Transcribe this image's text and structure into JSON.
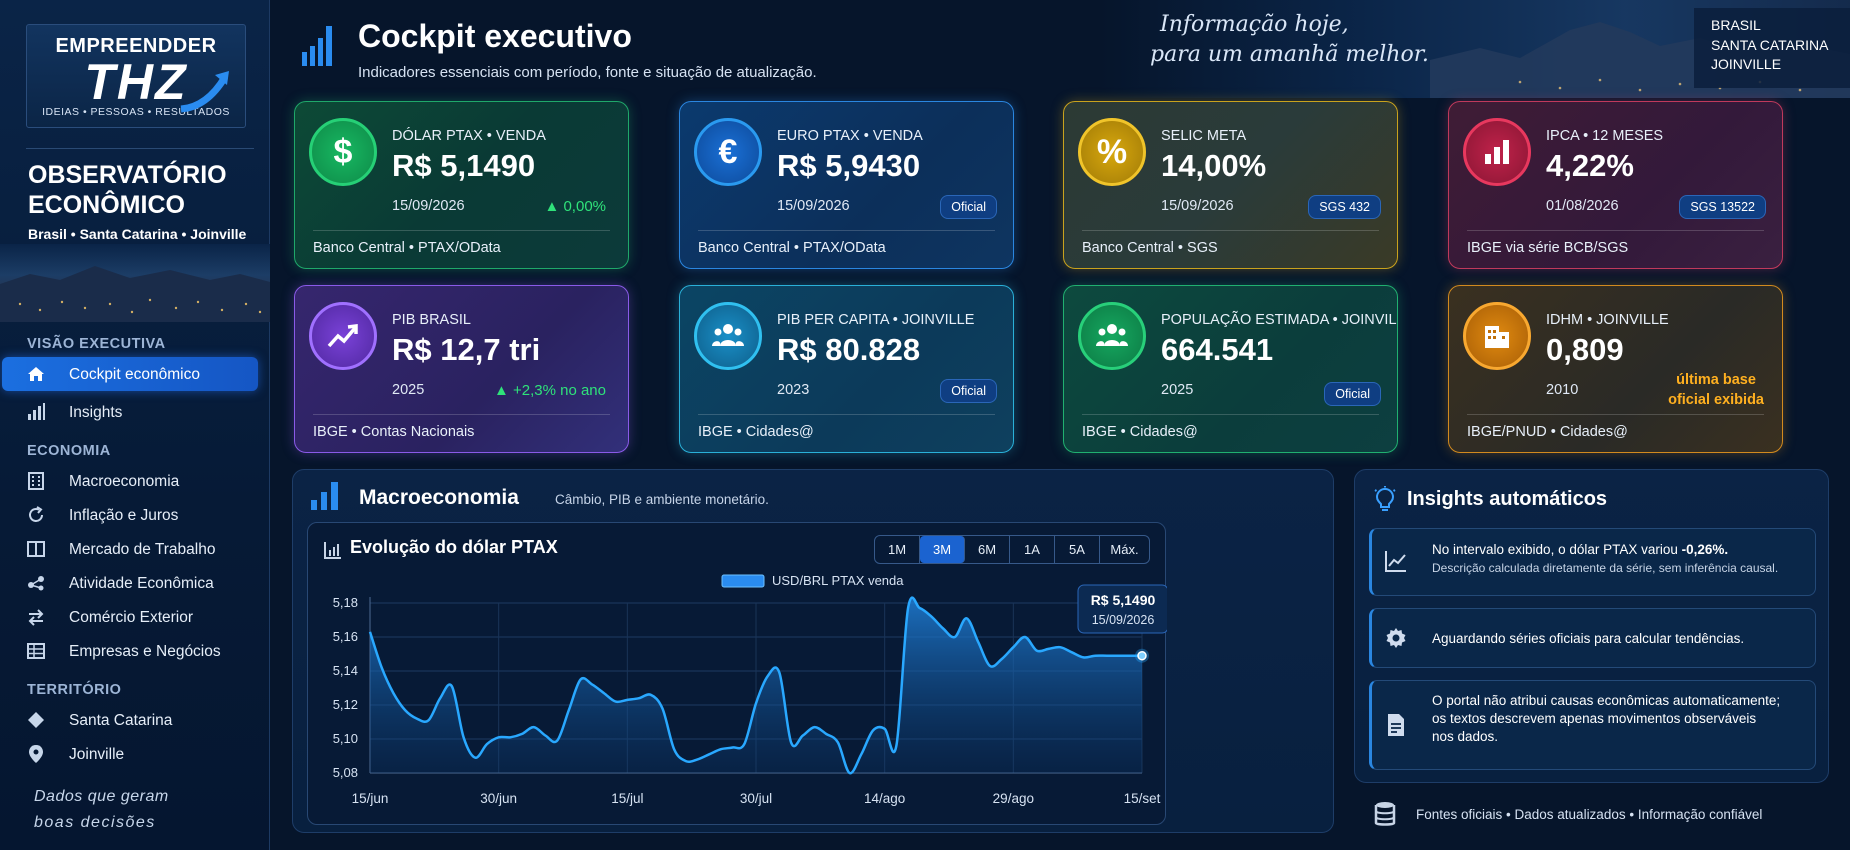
{
  "brand": {
    "top": "EMPREENDDER",
    "big": "THZ",
    "tagline": "IDEIAS • PESSOAS • RESULTADOS"
  },
  "observatory": {
    "title_line1": "OBSERVATÓRIO",
    "title_line2": "ECONÔMICO",
    "subtitle": "Brasil • Santa Catarina • Joinville"
  },
  "sidebar": {
    "sections": [
      "VISÃO EXECUTIVA",
      "ECONOMIA",
      "TERRITÓRIO"
    ],
    "items": [
      {
        "label": "Cockpit econômico",
        "icon": "home-icon",
        "active": true
      },
      {
        "label": "Insights",
        "icon": "bar-chart-icon"
      },
      {
        "label": "Macroeconomia",
        "icon": "building-icon"
      },
      {
        "label": "Inflação e Juros",
        "icon": "refresh-icon"
      },
      {
        "label": "Mercado de Trabalho",
        "icon": "book-icon"
      },
      {
        "label": "Atividade Econômica",
        "icon": "network-icon"
      },
      {
        "label": "Comércio Exterior",
        "icon": "exchange-icon"
      },
      {
        "label": "Empresas e Negócios",
        "icon": "table-icon"
      },
      {
        "label": "Santa Catarina",
        "icon": "diamond-icon"
      },
      {
        "label": "Joinville",
        "icon": "pin-icon"
      }
    ],
    "footer_line1": "Dados que geram",
    "footer_line2": "boas decisões"
  },
  "header": {
    "title": "Cockpit executivo",
    "subtitle": "Indicadores essenciais com período, fonte e situação de atualização.",
    "slogan_line1": "Informação hoje,",
    "slogan_line2": "para um amanhã melhor.",
    "location": [
      "BRASIL",
      "SANTA CATARINA",
      "JOINVILLE"
    ]
  },
  "cards": [
    {
      "label": "DÓLAR PTAX • VENDA",
      "value": "R$ 5,1490",
      "date": "15/09/2026",
      "source": "Banco Central • PTAX/OData",
      "change": "▲ 0,00%",
      "icon_text": "$",
      "color": "#1fc46f"
    },
    {
      "label": "EURO PTAX • VENDA",
      "value": "R$ 5,9430",
      "date": "15/09/2026",
      "source": "Banco Central • PTAX/OData",
      "badge": "Oficial",
      "icon_text": "€",
      "color": "#1f8ef0"
    },
    {
      "label": "SELIC META",
      "value": "14,00%",
      "date": "15/09/2026",
      "source": "Banco Central • SGS",
      "badge": "SGS 432",
      "icon_text": "%",
      "color": "#e0b21a"
    },
    {
      "label": "IPCA • 12 MESES",
      "value": "4,22%",
      "date": "01/08/2026",
      "source": "IBGE via série BCB/SGS",
      "badge": "SGS 13522",
      "icon": "bar-chart-icon",
      "color": "#d8325a"
    },
    {
      "label": "PIB BRASIL",
      "value": "R$ 12,7 tri",
      "date": "2025",
      "source": "IBGE • Contas Nacionais",
      "change": "▲ +2,3% no ano",
      "icon": "trend-up-icon",
      "color": "#8c52f0"
    },
    {
      "label": "PIB PER CAPITA • JOINVILLE",
      "value": "R$ 80.828",
      "date": "2023",
      "source": "IBGE • Cidades@",
      "badge": "Oficial",
      "icon": "people-icon",
      "color": "#1ea6d8"
    },
    {
      "label": "POPULAÇÃO ESTIMADA • JOINVILLE",
      "value": "664.541",
      "date": "2025",
      "source": "IBGE • Cidades@",
      "badge": "Oficial",
      "icon": "people-icon",
      "color": "#1fbf74"
    },
    {
      "label": "IDHM • JOINVILLE",
      "value": "0,809",
      "date": "2010",
      "source": "IBGE/PNUD • Cidades@",
      "note_line1": "última base",
      "note_line2": "oficial exibida",
      "icon": "buildings-icon",
      "color": "#e88a16"
    }
  ],
  "macro": {
    "title": "Macroeconomia",
    "subtitle": "Câmbio, PIB e ambiente monetário.",
    "chart_title": "Evolução do dólar PTAX",
    "ranges": [
      "1M",
      "3M",
      "6M",
      "1A",
      "5A",
      "Máx."
    ],
    "selected_range": "3M",
    "tooltip_value": "R$ 5,1490",
    "tooltip_date": "15/09/2026"
  },
  "chart_data": {
    "type": "area",
    "title": "Evolução do dólar PTAX",
    "legend": [
      "USD/BRL PTAX venda"
    ],
    "legend_position": "top",
    "grid": true,
    "ylim": [
      5.08,
      5.18
    ],
    "yticks": [
      "5,18",
      "5,16",
      "5,14",
      "5,12",
      "5,10",
      "5,08"
    ],
    "xticks": [
      "15/jun",
      "30/jun",
      "15/jul",
      "30/jul",
      "14/ago",
      "29/ago",
      "15/set"
    ],
    "series": [
      {
        "name": "USD/BRL PTAX venda",
        "x": [
          "15/jun",
          "16/jun",
          "17/jun",
          "18/jun",
          "19/jun",
          "20/jun",
          "23/jun",
          "24/jun",
          "25/jun",
          "26/jun",
          "27/jun",
          "30/jun",
          "01/jul",
          "02/jul",
          "03/jul",
          "04/jul",
          "07/jul",
          "08/jul",
          "09/jul",
          "10/jul",
          "11/jul",
          "14/jul",
          "15/jul",
          "16/jul",
          "17/jul",
          "18/jul",
          "21/jul",
          "22/jul",
          "23/jul",
          "24/jul",
          "25/jul",
          "28/jul",
          "29/jul",
          "30/jul",
          "31/jul",
          "01/ago",
          "04/ago",
          "05/ago",
          "06/ago",
          "07/ago",
          "08/ago",
          "11/ago",
          "12/ago",
          "13/ago",
          "14/ago",
          "15/ago",
          "18/ago",
          "19/ago",
          "20/ago",
          "21/ago",
          "22/ago",
          "25/ago",
          "26/ago",
          "27/ago",
          "28/ago",
          "29/ago",
          "01/set",
          "02/set",
          "03/set",
          "04/set",
          "05/set",
          "08/set",
          "09/set",
          "10/set",
          "11/set",
          "12/set",
          "15/set"
        ],
        "values": [
          5.163,
          5.142,
          5.127,
          5.117,
          5.112,
          5.111,
          5.124,
          5.131,
          5.101,
          5.089,
          5.097,
          5.101,
          5.101,
          5.103,
          5.107,
          5.102,
          5.099,
          5.117,
          5.135,
          5.132,
          5.127,
          5.122,
          5.123,
          5.124,
          5.126,
          5.118,
          5.094,
          5.087,
          5.088,
          5.091,
          5.094,
          5.095,
          5.097,
          5.121,
          5.137,
          5.139,
          5.098,
          5.102,
          5.107,
          5.103,
          5.098,
          5.08,
          5.091,
          5.105,
          5.106,
          5.096,
          5.177,
          5.177,
          5.172,
          5.165,
          5.16,
          5.171,
          5.157,
          5.143,
          5.147,
          5.154,
          5.16,
          5.152,
          5.153,
          5.154,
          5.151,
          5.148,
          5.149,
          5.149,
          5.149,
          5.149,
          5.149
        ]
      }
    ]
  },
  "insights": {
    "title": "Insights automáticos",
    "items": [
      {
        "text_pre": "No intervalo exibido, o dólar PTAX variou ",
        "text_bold": "-0,26%.",
        "sub": "Descrição calculada diretamente da série, sem inferência causal.",
        "icon": "trend-line-icon"
      },
      {
        "text": "Aguardando séries oficiais para calcular tendências.",
        "icon": "gear-icon"
      },
      {
        "line1": "O portal não atribui causas econômicas automaticamente;",
        "line2": "os textos descrevem apenas movimentos observáveis",
        "line3": "nos dados.",
        "icon": "document-icon"
      }
    ],
    "footer": "Fontes oficiais • Dados atualizados • Informação confiável"
  },
  "colors": {
    "background": "#06152b",
    "accent": "#1b63d0",
    "series_line": "#29a8ff",
    "positive": "#2fe27a",
    "note": "#ffb020"
  }
}
